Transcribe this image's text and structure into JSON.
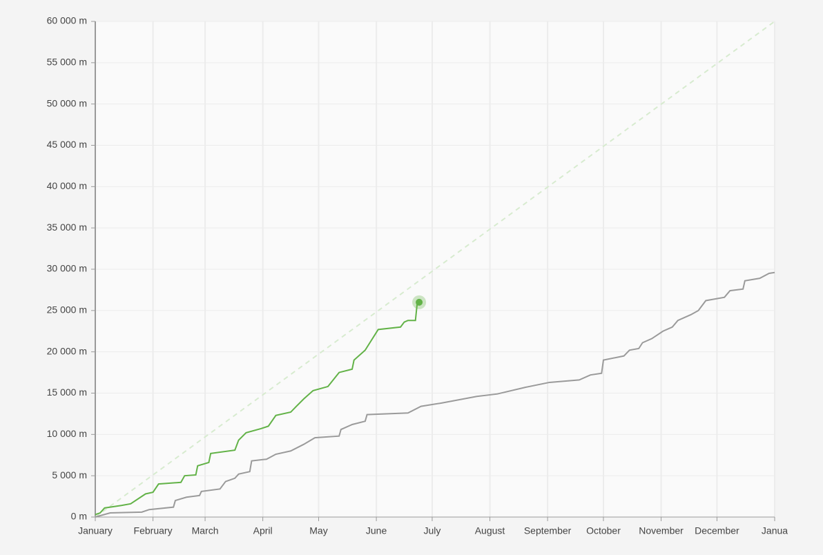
{
  "chart_data": {
    "type": "line",
    "xlim": [
      0,
      365
    ],
    "ylim": [
      0,
      60000
    ],
    "grid": true,
    "xticks": [
      {
        "value": 0,
        "label": "January"
      },
      {
        "value": 31,
        "label": "February"
      },
      {
        "value": 59,
        "label": "March"
      },
      {
        "value": 90,
        "label": "April"
      },
      {
        "value": 120,
        "label": "May"
      },
      {
        "value": 151,
        "label": "June"
      },
      {
        "value": 181,
        "label": "July"
      },
      {
        "value": 212,
        "label": "August"
      },
      {
        "value": 243,
        "label": "September"
      },
      {
        "value": 273,
        "label": "October"
      },
      {
        "value": 304,
        "label": "November"
      },
      {
        "value": 334,
        "label": "December"
      },
      {
        "value": 365,
        "label": "Janua"
      }
    ],
    "yticks": [
      {
        "value": 0,
        "label": "0 m"
      },
      {
        "value": 5000,
        "label": "5 000 m"
      },
      {
        "value": 10000,
        "label": "10 000 m"
      },
      {
        "value": 15000,
        "label": "15 000 m"
      },
      {
        "value": 20000,
        "label": "20 000 m"
      },
      {
        "value": 25000,
        "label": "25 000 m"
      },
      {
        "value": 30000,
        "label": "30 000 m"
      },
      {
        "value": 35000,
        "label": "35 000 m"
      },
      {
        "value": 40000,
        "label": "40 000 m"
      },
      {
        "value": 45000,
        "label": "45 000 m"
      },
      {
        "value": 50000,
        "label": "50 000 m"
      },
      {
        "value": 55000,
        "label": "55 000 m"
      },
      {
        "value": 60000,
        "label": "60 000 m"
      }
    ],
    "series": [
      {
        "color": "#d7ebcf",
        "dashed": true,
        "x": [
          0,
          365
        ],
        "values": [
          0,
          60000
        ]
      },
      {
        "color": "#9a9a9a",
        "x": [
          0,
          8,
          25,
          29,
          42,
          43,
          49,
          56,
          57,
          67,
          70,
          75,
          77,
          83,
          84,
          92,
          97,
          105,
          112,
          118,
          131,
          132,
          138,
          145,
          146,
          168,
          175,
          186,
          205,
          216,
          231,
          244,
          260,
          266,
          272,
          273,
          284,
          287,
          292,
          294,
          299,
          305,
          310,
          313,
          320,
          324,
          328,
          338,
          341,
          348,
          349,
          357,
          362,
          365
        ],
        "values": [
          0,
          500,
          600,
          900,
          1200,
          2000,
          2400,
          2600,
          3100,
          3400,
          4300,
          4700,
          5200,
          5500,
          6800,
          7000,
          7600,
          8000,
          8800,
          9600,
          9800,
          10600,
          11200,
          11600,
          12400,
          12600,
          13400,
          13800,
          14600,
          14900,
          15700,
          16300,
          16600,
          17200,
          17400,
          19000,
          19500,
          20200,
          20400,
          21100,
          21600,
          22500,
          23000,
          23800,
          24500,
          25000,
          26200,
          26600,
          27400,
          27600,
          28600,
          28900,
          29500,
          29600
        ]
      },
      {
        "color": "#62b247",
        "end_marker": true,
        "x": [
          0,
          2.6,
          5,
          14,
          19,
          27,
          31,
          34,
          46,
          48,
          54,
          55,
          61,
          62,
          75,
          77,
          81,
          89,
          93,
          97,
          105,
          108,
          112,
          117,
          125,
          131,
          138,
          139,
          145,
          152,
          164,
          166,
          168,
          172,
          173,
          174
        ],
        "values": [
          300,
          500,
          1100,
          1400,
          1600,
          2800,
          3000,
          4000,
          4200,
          5000,
          5100,
          6200,
          6600,
          7700,
          8100,
          9300,
          10200,
          10700,
          11000,
          12300,
          12700,
          13400,
          14300,
          15300,
          15800,
          17500,
          17900,
          19000,
          20200,
          22700,
          23000,
          23600,
          23800,
          23800,
          26000,
          26000
        ]
      }
    ]
  }
}
